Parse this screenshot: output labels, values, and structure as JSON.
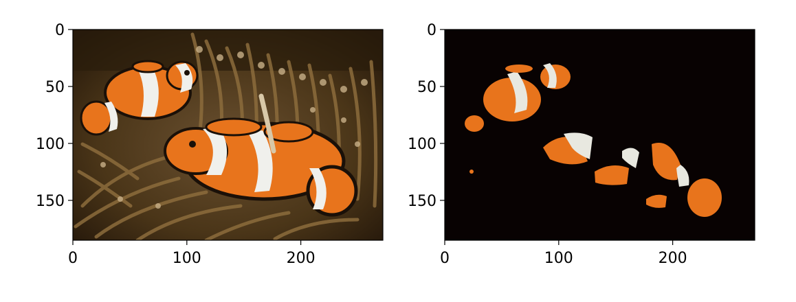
{
  "chart_data": [
    {
      "type": "image",
      "panel": "left",
      "content": "clownfish photo (original)",
      "xlim": [
        0,
        272
      ],
      "ylim": [
        185,
        0
      ],
      "xticks": [
        0,
        100,
        200
      ],
      "yticks": [
        0,
        50,
        100,
        150
      ],
      "xtick_labels": [
        "0",
        "100",
        "200"
      ],
      "ytick_labels": [
        "0",
        "50",
        "100",
        "150"
      ],
      "colors": {
        "background": "#3a2a14",
        "anemone": "#8a6a3a",
        "fish_orange": "#e8741c",
        "fish_white": "#f0f0ec",
        "fish_edge": "#1a1008"
      }
    },
    {
      "type": "image",
      "panel": "right",
      "content": "segmented clownfish (orange/white mask on black)",
      "xlim": [
        0,
        272
      ],
      "ylim": [
        185,
        0
      ],
      "xticks": [
        0,
        100,
        200
      ],
      "yticks": [
        0,
        50,
        100,
        150
      ],
      "xtick_labels": [
        "0",
        "100",
        "200"
      ],
      "ytick_labels": [
        "0",
        "50",
        "100",
        "150"
      ],
      "colors": {
        "background": "#080202",
        "fish_orange": "#e8741c",
        "fish_white": "#e8e8e0"
      }
    }
  ]
}
